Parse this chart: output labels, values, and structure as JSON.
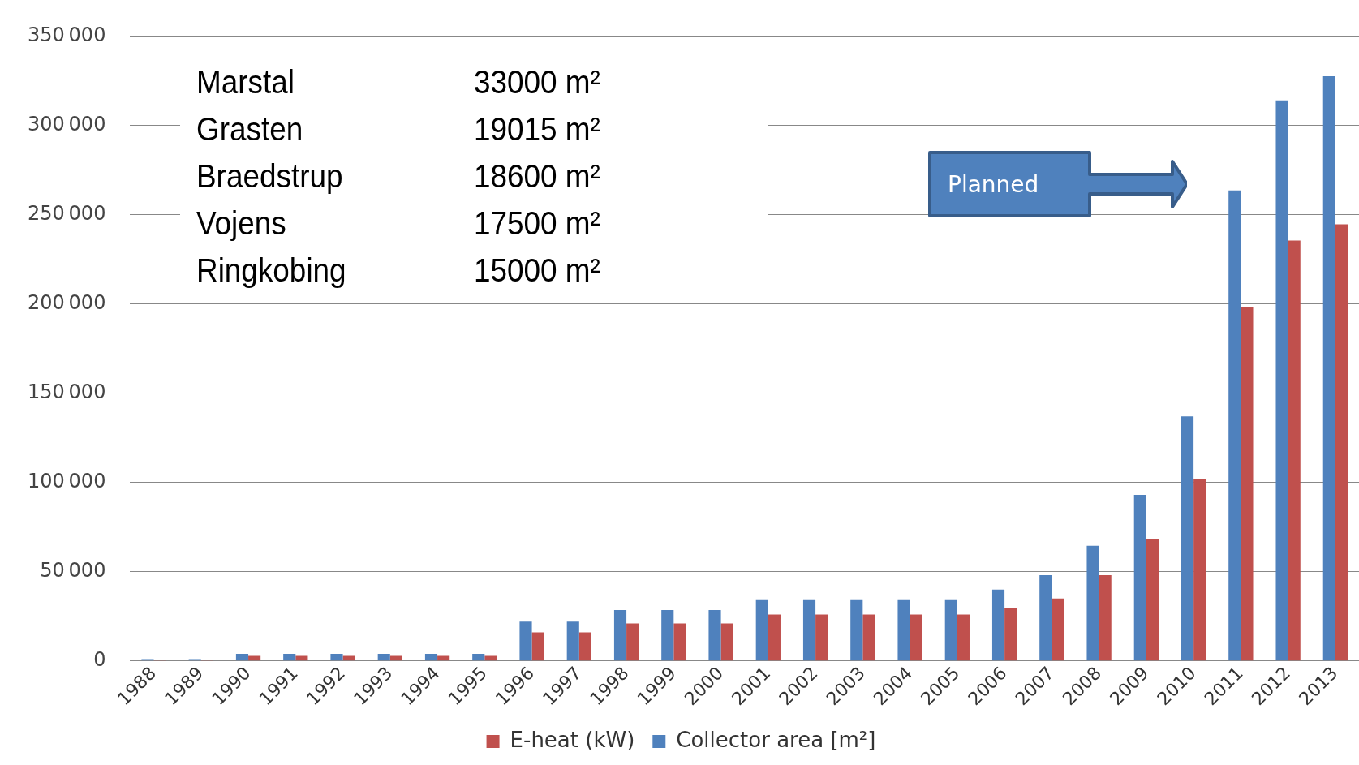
{
  "chart_data": {
    "type": "bar",
    "categories": [
      "1988",
      "1989",
      "1990",
      "1991",
      "1992",
      "1993",
      "1994",
      "1995",
      "1996",
      "1997",
      "1998",
      "1999",
      "2000",
      "2001",
      "2002",
      "2003",
      "2004",
      "2005",
      "2006",
      "2007",
      "2008",
      "2009",
      "2010",
      "2011",
      "2012",
      "2013"
    ],
    "series": [
      {
        "name": "Collector area [m²]",
        "color": "#4f81bd",
        "values": [
          1000,
          1000,
          4000,
          4000,
          4000,
          4000,
          4000,
          4000,
          22000,
          22000,
          28500,
          28500,
          28500,
          34500,
          34500,
          34500,
          34500,
          34500,
          40000,
          48000,
          64500,
          93000,
          137000,
          263500,
          314000,
          327500
        ]
      },
      {
        "name": "E-heat (kW)",
        "color": "#c0504d",
        "values": [
          700,
          700,
          2800,
          2800,
          2800,
          2800,
          2800,
          2800,
          16000,
          16000,
          21000,
          21000,
          21000,
          26000,
          26000,
          26000,
          26000,
          26000,
          29500,
          35000,
          48000,
          68500,
          102000,
          198000,
          235500,
          244500
        ]
      }
    ],
    "ylim": [
      0,
      350000
    ],
    "yticks": [
      0,
      50000,
      100000,
      150000,
      200000,
      250000,
      300000,
      350000
    ],
    "grid": "y",
    "legend": "bottom",
    "annotations": [
      "Marstal",
      "33000 m²",
      "Grasten",
      "19015 m²",
      "Braedstrup",
      "18600 m²",
      "Vojens",
      "17500 m²",
      "Ringkobing",
      "15000 m²",
      "Planned"
    ]
  }
}
